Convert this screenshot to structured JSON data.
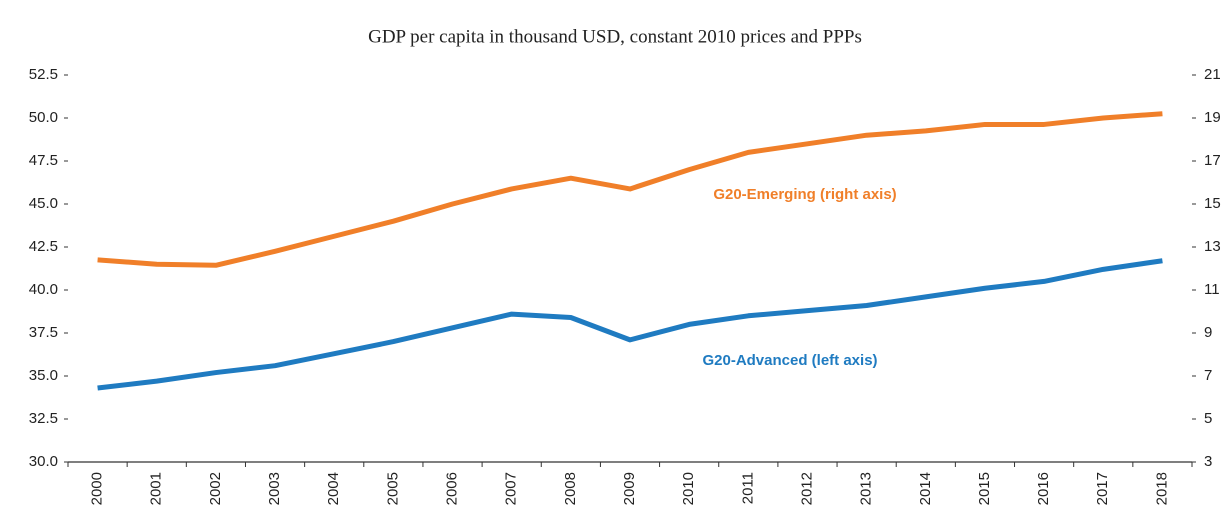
{
  "chart_data": {
    "type": "line",
    "title": "GDP per capita in thousand USD, constant 2010 prices and PPPs",
    "categories": [
      "2000",
      "2001",
      "2002",
      "2003",
      "2004",
      "2005",
      "2006",
      "2007",
      "2008",
      "2009",
      "2010",
      "2011",
      "2012",
      "2013",
      "2014",
      "2015",
      "2016",
      "2017",
      "2018"
    ],
    "series": [
      {
        "name": "G20-Emerging (right axis)",
        "color": "#f07f29",
        "axis": "y2",
        "values": [
          12.4,
          12.2,
          12.15,
          12.8,
          13.5,
          14.2,
          15.0,
          15.7,
          16.2,
          15.7,
          16.6,
          17.4,
          17.8,
          18.2,
          18.4,
          18.7,
          18.7,
          19.0,
          19.2
        ]
      },
      {
        "name": "G20-Advanced (left axis)",
        "color": "#1f7bc1",
        "axis": "y",
        "values": [
          34.3,
          34.7,
          35.2,
          35.6,
          36.3,
          37.0,
          37.8,
          38.6,
          38.4,
          37.1,
          38.0,
          38.5,
          38.8,
          39.1,
          39.6,
          40.1,
          40.5,
          41.2,
          41.7
        ]
      }
    ],
    "ylim": [
      30,
      52.5
    ],
    "yticks": [
      {
        "value": 30,
        "label": "30.0"
      },
      32.5,
      {
        "value": 35,
        "label": "35.0"
      },
      37.5,
      {
        "value": 40,
        "label": "40.0"
      },
      42.5,
      {
        "value": 45,
        "label": "45.0"
      },
      47.5,
      {
        "value": 50,
        "label": "50.0"
      },
      52.5
    ],
    "y2lim": [
      3,
      21
    ],
    "y2ticks": [
      3,
      5,
      7,
      9,
      11,
      13,
      15,
      17,
      19,
      21
    ]
  }
}
